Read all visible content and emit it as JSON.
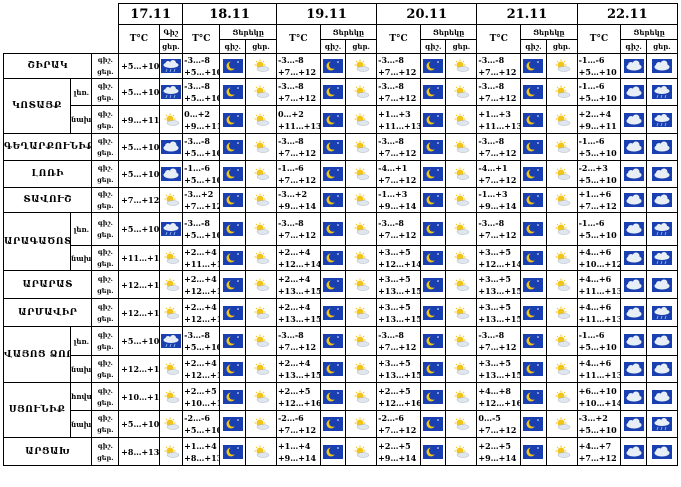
{
  "dates": [
    "17.11",
    "18.11",
    "19.11",
    "20.11",
    "21.11",
    "22.11"
  ],
  "labels": {
    "temp": "T°C",
    "night": "Գիշ",
    "daynight": "Ցերեկը",
    "gish": "գիշ.",
    "cer": "ցեր."
  },
  "colors": {
    "border": "#000000",
    "sky": "#1a3fb0",
    "sun": "#f2c518",
    "cloud": "#e8eef5",
    "rain": "#5a6b7c"
  },
  "rows": [
    {
      "region": "ՇԻՐԱԿ",
      "sub": "",
      "n1": "+5…+10",
      "d": [
        [
          "-3…-8",
          "+5…+10"
        ],
        [
          "-3…-8",
          "+7…+12"
        ],
        [
          "-3…-8",
          "+7…+12"
        ],
        [
          "-3…-8",
          "+7…+12"
        ],
        [
          "-1…-6",
          "+5…+10"
        ]
      ],
      "icons": [
        "cloudrain",
        "moon",
        "sun",
        "moon",
        "sun",
        "moon",
        "sun",
        "moon",
        "sun",
        "cloud",
        "cloud"
      ]
    },
    {
      "region": "ԿՈՏԱՅՔ",
      "sub": "լեռ.",
      "n1": "+5…+10",
      "d": [
        [
          "-3…-8",
          "+5…+10"
        ],
        [
          "-3…-8",
          "+7…+12"
        ],
        [
          "-3…-8",
          "+7…+12"
        ],
        [
          "-3…-8",
          "+7…+12"
        ],
        [
          "-1…-6",
          "+5…+10"
        ]
      ],
      "icons": [
        "cloudrain",
        "moon",
        "sun",
        "moon",
        "sun",
        "moon",
        "sun",
        "moon",
        "sun",
        "cloud",
        "cloudrain"
      ]
    },
    {
      "region": "",
      "sub": "նախ.",
      "n1": "+9…+11",
      "d": [
        [
          "0…+2",
          "+9…+11"
        ],
        [
          "0…+2",
          "+11…+13"
        ],
        [
          "+1…+3",
          "+11…+13"
        ],
        [
          "+1…+3",
          "+11…+13"
        ],
        [
          "+2…+4",
          "+9…+11"
        ]
      ],
      "icons": [
        "sun",
        "moon",
        "sun",
        "moon",
        "sun",
        "moon",
        "sun",
        "moon",
        "sun",
        "cloud",
        "cloudrain"
      ]
    },
    {
      "region": "ԳԵՂԱՐՔՈՒՆԻՔ",
      "sub": "",
      "n1": "+5…+10",
      "d": [
        [
          "-3…-8",
          "+5…+10"
        ],
        [
          "-3…-8",
          "+7…+12"
        ],
        [
          "-3…-8",
          "+7…+12"
        ],
        [
          "-3…-8",
          "+7…+12"
        ],
        [
          "-1…-6",
          "+5…+10"
        ]
      ],
      "icons": [
        "cloud",
        "moon",
        "sun",
        "moon",
        "sun",
        "moon",
        "sun",
        "moon",
        "sun",
        "cloud",
        "cloud"
      ]
    },
    {
      "region": "ԼՈՌԻ",
      "sub": "",
      "n1": "+5…+10",
      "d": [
        [
          "-1…-6",
          "+5…+10"
        ],
        [
          "-1…-6",
          "+7…+12"
        ],
        [
          "-4…+1",
          "+7…+12"
        ],
        [
          "-4…+1",
          "+7…+12"
        ],
        [
          "-2…+3",
          "+5…+10"
        ]
      ],
      "icons": [
        "cloud",
        "moon",
        "sun",
        "moon",
        "sun",
        "moon",
        "sun",
        "moon",
        "sun",
        "cloud",
        "cloud"
      ]
    },
    {
      "region": "ՏԱՎՈՒՇ",
      "sub": "",
      "n1": "+7…+12",
      "d": [
        [
          "-3…+2",
          "+7…+12"
        ],
        [
          "-3…+2",
          "+9…+14"
        ],
        [
          "-1…+3",
          "+9…+14"
        ],
        [
          "-1…+3",
          "+9…+14"
        ],
        [
          "+1…+6",
          "+7…+12"
        ]
      ],
      "icons": [
        "sun",
        "moon",
        "sun",
        "moon",
        "sun",
        "moon",
        "sun",
        "moon",
        "sun",
        "cloud",
        "cloud"
      ]
    },
    {
      "region": "ԱՐԱԳԱԾՈՏՆ",
      "sub": "լեռ.",
      "n1": "+5…+10",
      "d": [
        [
          "-3…-8",
          "+5…+10"
        ],
        [
          "-3…-8",
          "+7…+12"
        ],
        [
          "-3…-8",
          "+7…+12"
        ],
        [
          "-3…-8",
          "+7…+12"
        ],
        [
          "-1…-6",
          "+5…+10"
        ]
      ],
      "icons": [
        "cloudrain",
        "moon",
        "sun",
        "moon",
        "sun",
        "moon",
        "sun",
        "moon",
        "sun",
        "cloud",
        "cloudrain"
      ]
    },
    {
      "region": "",
      "sub": "նախ.",
      "n1": "+11…+13",
      "d": [
        [
          "+2…+4",
          "+11…+13"
        ],
        [
          "+2…+4",
          "+12…+14"
        ],
        [
          "+3…+5",
          "+12…+14"
        ],
        [
          "+3…+5",
          "+12…+14"
        ],
        [
          "+4…+6",
          "+10…+12"
        ]
      ],
      "icons": [
        "sun",
        "moon",
        "sun",
        "moon",
        "sun",
        "moon",
        "sun",
        "moon",
        "sun",
        "cloud",
        "cloudrain"
      ]
    },
    {
      "region": "ԱՐԱՐԱՏ",
      "sub": "",
      "n1": "+12…+14",
      "d": [
        [
          "+2…+4",
          "+12…+14"
        ],
        [
          "+2…+4",
          "+13…+15"
        ],
        [
          "+3…+5",
          "+13…+15"
        ],
        [
          "+3…+5",
          "+13…+15"
        ],
        [
          "+4…+6",
          "+11…+13"
        ]
      ],
      "icons": [
        "sun",
        "moon",
        "sun",
        "moon",
        "sun",
        "moon",
        "sun",
        "moon",
        "sun",
        "cloud",
        "cloud"
      ]
    },
    {
      "region": "ԱՐՄԱՎԻՐ",
      "sub": "",
      "n1": "+12…+14",
      "d": [
        [
          "+2…+4",
          "+12…+14"
        ],
        [
          "+2…+4",
          "+13…+15"
        ],
        [
          "+3…+5",
          "+13…+15"
        ],
        [
          "+3…+5",
          "+13…+15"
        ],
        [
          "+4…+6",
          "+11…+13"
        ]
      ],
      "icons": [
        "sun",
        "moon",
        "sun",
        "moon",
        "sun",
        "moon",
        "sun",
        "moon",
        "sun",
        "cloud",
        "cloudrain"
      ]
    },
    {
      "region": "ՎԱՅՈՑ ՁՈՐ",
      "sub": "լեռ.",
      "n1": "+5…+10",
      "d": [
        [
          "-3…-8",
          "+5…+10"
        ],
        [
          "-3…-8",
          "+7…+12"
        ],
        [
          "-3…-8",
          "+7…+12"
        ],
        [
          "-3…-8",
          "+7…+12"
        ],
        [
          "-1…-6",
          "+5…+10"
        ]
      ],
      "icons": [
        "cloudrain",
        "moon",
        "sun",
        "moon",
        "sun",
        "moon",
        "sun",
        "moon",
        "sun",
        "cloud",
        "cloud"
      ]
    },
    {
      "region": "",
      "sub": "նախ.",
      "n1": "+12…+14",
      "d": [
        [
          "+2…+4",
          "+12…+14"
        ],
        [
          "+2…+4",
          "+13…+15"
        ],
        [
          "+3…+5",
          "+13…+15"
        ],
        [
          "+3…+5",
          "+13…+15"
        ],
        [
          "+4…+6",
          "+11…+13"
        ]
      ],
      "icons": [
        "sun",
        "moon",
        "sun",
        "moon",
        "sun",
        "moon",
        "sun",
        "moon",
        "sun",
        "cloud",
        "cloud"
      ]
    },
    {
      "region": "ՍՅՈՒՆԻՔ",
      "sub": "հովտ.",
      "n1": "+10…+14",
      "d": [
        [
          "+2…+5",
          "+10…+14"
        ],
        [
          "+2…+5",
          "+12…+16"
        ],
        [
          "+2…+5",
          "+12…+16"
        ],
        [
          "+4…+8",
          "+12…+16"
        ],
        [
          "+6…+10",
          "+10…+14"
        ]
      ],
      "icons": [
        "sun",
        "moon",
        "sun",
        "moon",
        "sun",
        "moon",
        "sun",
        "moon",
        "sun",
        "cloud",
        "cloud"
      ]
    },
    {
      "region": "",
      "sub": "նախ.",
      "n1": "+5…+10",
      "d": [
        [
          "-2…-6",
          "+5…+10"
        ],
        [
          "-2…-6",
          "+7…+12"
        ],
        [
          "-2…-6",
          "+7…+12"
        ],
        [
          "0…-5",
          "+7…+12"
        ],
        [
          "-3…+2",
          "+5…+10"
        ]
      ],
      "icons": [
        "sun",
        "moon",
        "sun",
        "moon",
        "sun",
        "moon",
        "sun",
        "moon",
        "sun",
        "cloud",
        "cloudrain"
      ]
    },
    {
      "region": "ԱՐՑԱԽ",
      "sub": "",
      "n1": "+8…+13",
      "d": [
        [
          "+1…+4",
          "+8…+13"
        ],
        [
          "+1…+4",
          "+9…+14"
        ],
        [
          "+2…+5",
          "+9…+14"
        ],
        [
          "+2…+5",
          "+9…+14"
        ],
        [
          "+4…+7",
          "+7…+12"
        ]
      ],
      "icons": [
        "sun",
        "moon",
        "sun",
        "moon",
        "sun",
        "moon",
        "sun",
        "moon",
        "sun",
        "cloud",
        "cloud"
      ]
    }
  ]
}
